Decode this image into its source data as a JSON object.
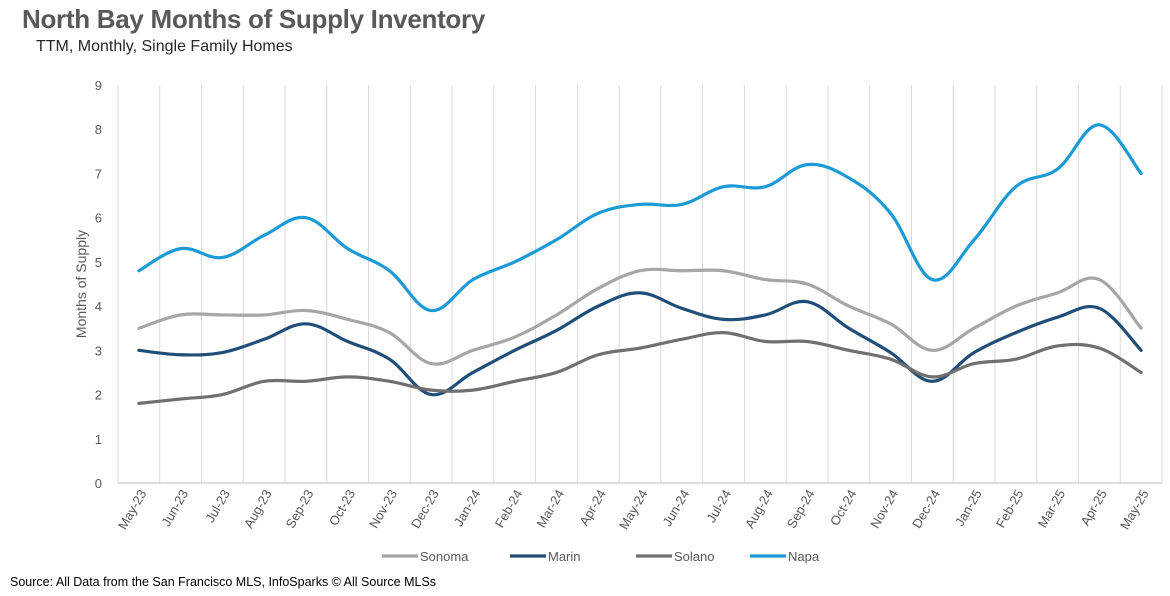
{
  "title": "North Bay Months of Supply Inventory",
  "subtitle": "TTM, Monthly, Single Family Homes",
  "source": "Source: All Data from the San Francisco MLS, InfoSparks © All Source MLSs",
  "chart_data": {
    "type": "line",
    "title": "North Bay Months of Supply Inventory",
    "subtitle": "TTM, Monthly, Single Family Homes",
    "xlabel": "",
    "ylabel": "Months of Supply",
    "ylim": [
      0,
      9
    ],
    "yticks": [
      0,
      1,
      2,
      3,
      4,
      5,
      6,
      7,
      8,
      9
    ],
    "grid": "vertical",
    "legend": "bottom",
    "categories": [
      "May-23",
      "Jun-23",
      "Jul-23",
      "Aug-23",
      "Sep-23",
      "Oct-23",
      "Nov-23",
      "Dec-23",
      "Jan-24",
      "Feb-24",
      "Mar-24",
      "Apr-24",
      "May-24",
      "Jun-24",
      "Jul-24",
      "Aug-24",
      "Sep-24",
      "Oct-24",
      "Nov-24",
      "Dec-24",
      "Jan-25",
      "Feb-25",
      "Mar-25",
      "Apr-25",
      "May-25"
    ],
    "series": [
      {
        "name": "Sonoma",
        "color": "#a6a6a6",
        "values": [
          3.5,
          3.8,
          3.8,
          3.8,
          3.9,
          3.7,
          3.4,
          2.7,
          3.0,
          3.3,
          3.8,
          4.4,
          4.8,
          4.8,
          4.8,
          4.6,
          4.5,
          4.0,
          3.6,
          3.0,
          3.5,
          4.0,
          4.3,
          4.6,
          3.5
        ]
      },
      {
        "name": "Marin",
        "color": "#1f4e79",
        "values": [
          3.0,
          2.9,
          2.95,
          3.25,
          3.6,
          3.2,
          2.8,
          2.0,
          2.5,
          3.0,
          3.45,
          4.0,
          4.3,
          3.95,
          3.7,
          3.8,
          4.1,
          3.5,
          2.95,
          2.3,
          2.95,
          3.4,
          3.75,
          3.95,
          3.0
        ]
      },
      {
        "name": "Solano",
        "color": "#707070",
        "values": [
          1.8,
          1.9,
          2.0,
          2.3,
          2.3,
          2.4,
          2.3,
          2.1,
          2.1,
          2.3,
          2.5,
          2.9,
          3.05,
          3.25,
          3.4,
          3.2,
          3.2,
          3.0,
          2.8,
          2.4,
          2.7,
          2.8,
          3.1,
          3.05,
          2.5
        ]
      },
      {
        "name": "Napa",
        "color": "#1b9ad6",
        "values": [
          4.8,
          5.3,
          5.1,
          5.6,
          6.0,
          5.3,
          4.8,
          3.9,
          4.6,
          5.0,
          5.5,
          6.1,
          6.3,
          6.3,
          6.7,
          6.7,
          7.2,
          6.9,
          6.1,
          4.6,
          5.5,
          6.7,
          7.1,
          8.1,
          7.0
        ]
      }
    ]
  }
}
